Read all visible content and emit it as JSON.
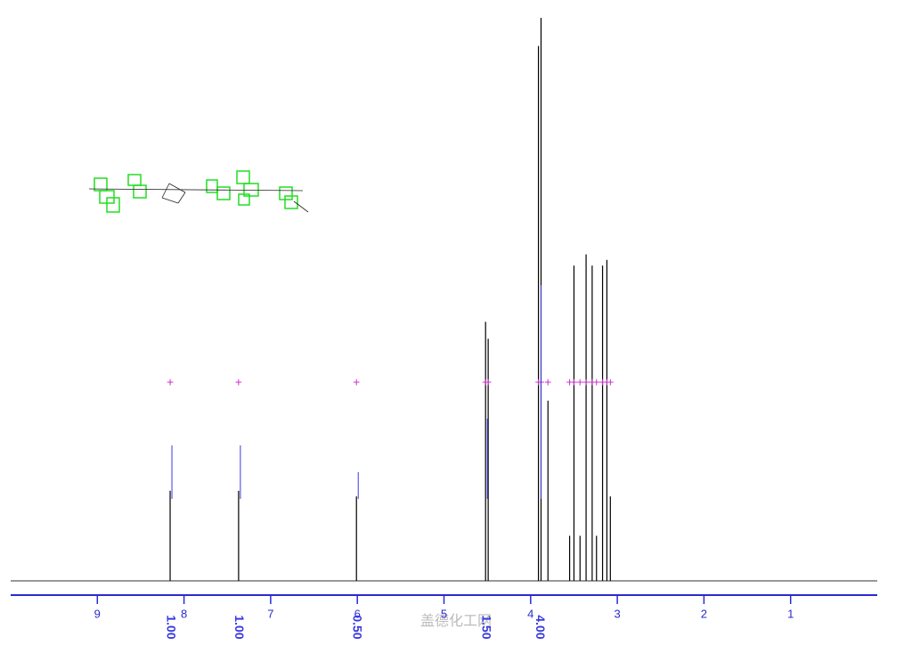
{
  "chart_data": {
    "type": "stick",
    "x": [
      8.16,
      7.37,
      6.01,
      4.52,
      4.49,
      3.91,
      3.88,
      3.8,
      3.55,
      3.5,
      3.43,
      3.36,
      3.29,
      3.24,
      3.17,
      3.12,
      3.08
    ],
    "values": [
      16,
      16,
      15,
      46,
      43,
      95,
      100,
      32,
      8,
      56,
      8,
      58,
      56,
      8,
      56,
      57,
      15
    ],
    "color": "#000000",
    "xlim": [
      10,
      0
    ],
    "xticks": [
      9,
      8,
      7,
      6,
      5,
      4,
      3,
      2,
      1
    ],
    "ylim": [
      0,
      100
    ],
    "axis_color": "#2a2ad0",
    "integral_color": "#3a3ae0",
    "marker_color": "#cc33cc",
    "integrals": {
      "x": [
        8.16,
        7.37,
        6.01,
        4.52,
        3.9
      ],
      "values": [
        1,
        1,
        0.5,
        1.5,
        4
      ],
      "value_labels": [
        "1.00",
        "1.00",
        "0.50",
        "1.50",
        "4.00"
      ]
    },
    "watermark": "盖德化工网"
  }
}
